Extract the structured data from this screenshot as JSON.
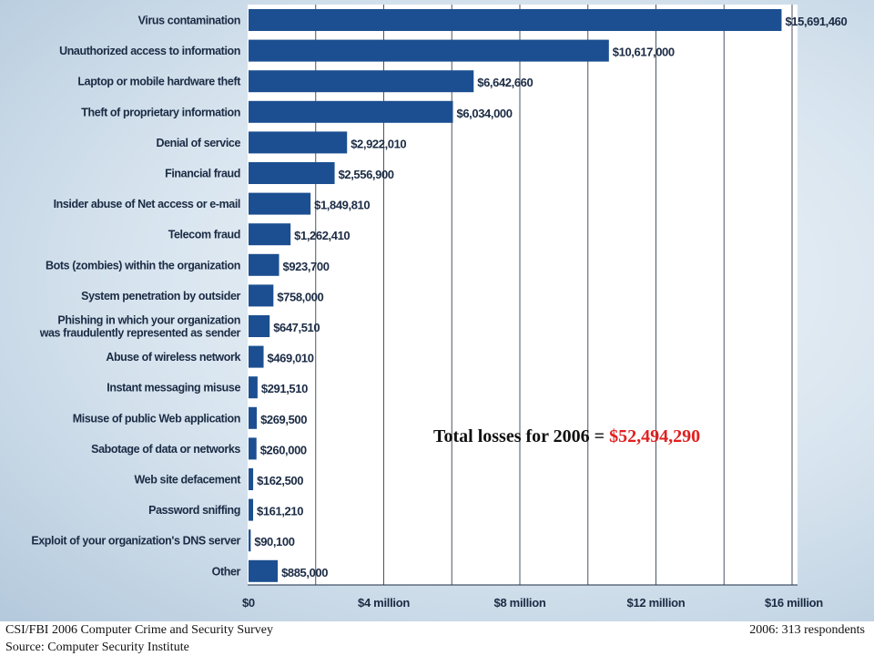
{
  "chart_data": {
    "type": "bar",
    "orientation": "horizontal",
    "categories": [
      "Virus contamination",
      "Unauthorized access to information",
      "Laptop or mobile hardware theft",
      "Theft of proprietary information",
      "Denial of service",
      "Financial fraud",
      "Insider abuse of Net access or e-mail",
      "Telecom fraud",
      "Bots (zombies) within the organization",
      "System penetration by outsider",
      "Phishing in which your organization\nwas fraudulently represented as sender",
      "Abuse of wireless network",
      "Instant messaging misuse",
      "Misuse of public Web application",
      "Sabotage of data or networks",
      "Web site defacement",
      "Password sniffing",
      "Exploit of your organization's DNS server",
      "Other"
    ],
    "values": [
      15691460,
      10617000,
      6642660,
      6034000,
      2922010,
      2556900,
      1849810,
      1262410,
      923700,
      758000,
      647510,
      469010,
      291510,
      269500,
      260000,
      162500,
      161210,
      90100,
      885000
    ],
    "value_labels": [
      "$15,691,460",
      "$10,617,000",
      "$6,642,660",
      "$6,034,000",
      "$2,922,010",
      "$2,556,900",
      "$1,849,810",
      "$1,262,410",
      "$923,700",
      "$758,000",
      "$647,510",
      "$469,010",
      "$291,510",
      "$269,500",
      "$260,000",
      "$162,500",
      "$161,210",
      "$90,100",
      "$885,000"
    ],
    "xlim": [
      0,
      16000000
    ],
    "xticks": [
      0,
      4000000,
      8000000,
      12000000,
      16000000
    ],
    "xtick_labels": [
      "$0",
      "$4 million",
      "$8 million",
      "$12 million",
      "$16 million"
    ],
    "grid": true,
    "bar_color": "#1c4f91"
  },
  "annotation": {
    "total_prefix": "Total losses for 2006 = ",
    "total_value": "$52,494,290"
  },
  "footer": {
    "source_line1": "CSI/FBI 2006 Computer Crime and Security Survey",
    "source_line2": "Source: Computer Security Institute",
    "respondents": "2006: 313  respondents"
  }
}
